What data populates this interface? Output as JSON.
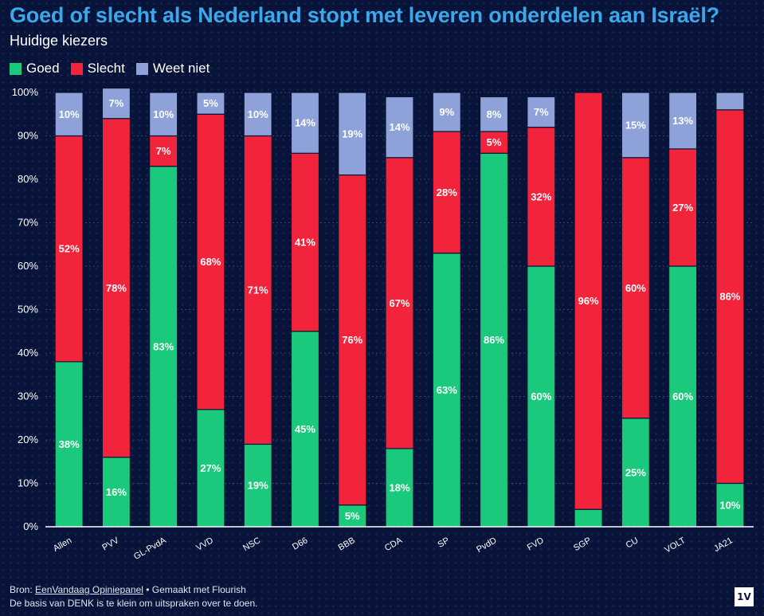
{
  "header": {
    "title": "Goed of slecht als Nederland stopt met leveren onderdelen aan Israël?",
    "subtitle": "Huidige kiezers"
  },
  "legend": [
    {
      "label": "Goed",
      "color": "#1bc97d"
    },
    {
      "label": "Slecht",
      "color": "#f2243c"
    },
    {
      "label": "Weet niet",
      "color": "#8ea1d8"
    }
  ],
  "footer": {
    "source_prefix": "Bron: ",
    "source_link": "EenVandaag Opiniepanel",
    "made_with": " • Gemaakt met Flourish",
    "note": "De basis van DENK is te klein om uitspraken over te doen.",
    "logo": "1V"
  },
  "chart_data": {
    "type": "bar",
    "stacked": true,
    "categories": [
      "Allen",
      "PVV",
      "GL-PvdA",
      "VVD",
      "NSC",
      "D66",
      "BBB",
      "CDA",
      "SP",
      "PvdD",
      "FVD",
      "SGP",
      "CU",
      "VOLT",
      "JA21"
    ],
    "series": [
      {
        "name": "Goed",
        "color": "#1bc97d",
        "values": [
          38,
          16,
          83,
          27,
          19,
          45,
          5,
          18,
          63,
          86,
          60,
          4,
          25,
          60,
          10
        ],
        "labels": [
          "38%",
          "16%",
          "83%",
          "27%",
          "19%",
          "45%",
          "5%",
          "18%",
          "63%",
          "86%",
          "60%",
          "",
          "25%",
          "60%",
          "10%"
        ]
      },
      {
        "name": "Slecht",
        "color": "#f2243c",
        "values": [
          52,
          78,
          7,
          68,
          71,
          41,
          76,
          67,
          28,
          5,
          32,
          96,
          60,
          27,
          86
        ],
        "labels": [
          "52%",
          "78%",
          "7%",
          "68%",
          "71%",
          "41%",
          "76%",
          "67%",
          "28%",
          "5%",
          "32%",
          "96%",
          "60%",
          "27%",
          "86%"
        ]
      },
      {
        "name": "Weet niet",
        "color": "#8ea1d8",
        "values": [
          10,
          7,
          10,
          5,
          10,
          14,
          19,
          14,
          9,
          8,
          7,
          0,
          15,
          13,
          4
        ],
        "labels": [
          "10%",
          "7%",
          "10%",
          "5%",
          "10%",
          "14%",
          "19%",
          "14%",
          "9%",
          "8%",
          "7%",
          "",
          "15%",
          "13%",
          ""
        ]
      }
    ],
    "ylim": [
      0,
      100
    ],
    "yticks": [
      "0%",
      "10%",
      "20%",
      "30%",
      "40%",
      "50%",
      "60%",
      "70%",
      "80%",
      "90%",
      "100%"
    ],
    "grid": true,
    "legend_position": "top-left"
  }
}
